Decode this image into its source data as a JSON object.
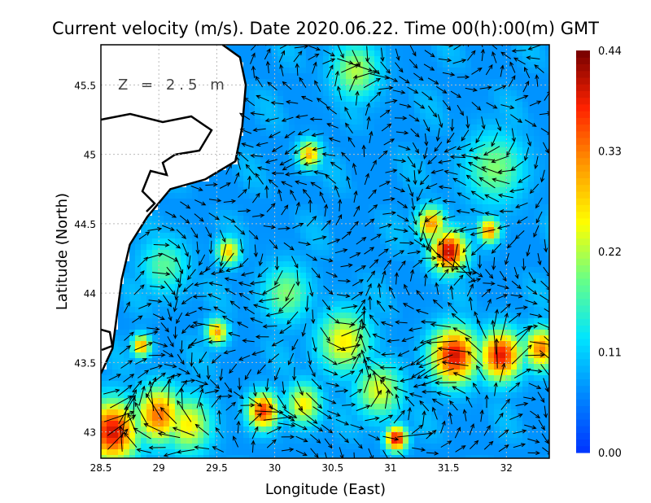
{
  "chart_data": {
    "type": "heatmap",
    "title": "Current velocity (m/s). Date 2020.06.22. Time 00(h):00(m) GMT",
    "xlabel": "Longitude (East)",
    "ylabel": "Latitude (North)",
    "annotation": "Z = 2.5 m",
    "xlim": [
      28.5,
      32.37
    ],
    "ylim": [
      42.81,
      45.79
    ],
    "xticks": [
      28.5,
      29,
      29.5,
      30,
      30.5,
      31,
      31.5,
      32
    ],
    "xtick_labels": [
      "28.5",
      "29",
      "29.5",
      "30",
      "30.5",
      "31",
      "31.5",
      "32"
    ],
    "yticks": [
      43,
      43.5,
      44,
      44.5,
      45,
      45.5
    ],
    "ytick_labels": [
      "43",
      "43.5",
      "44",
      "44.5",
      "45",
      "45.5"
    ],
    "grid": true,
    "colorbar": {
      "range": [
        0,
        0.44
      ],
      "tick_labels": [
        "0.00",
        "0.11",
        "0.22",
        "0.33",
        "0.44"
      ],
      "colors": [
        "#0033ff",
        "#0088ff",
        "#00e5ff",
        "#66ff88",
        "#ffff00",
        "#ff9900",
        "#ff2200",
        "#750000"
      ]
    },
    "background_speed": 0.07,
    "speed_maxima": [
      {
        "lon": 28.6,
        "lat": 43.0,
        "speed": 0.4,
        "r": 0.22
      },
      {
        "lon": 29.0,
        "lat": 43.12,
        "speed": 0.34,
        "r": 0.2
      },
      {
        "lon": 29.25,
        "lat": 43.05,
        "speed": 0.26,
        "r": 0.2
      },
      {
        "lon": 29.9,
        "lat": 43.15,
        "speed": 0.37,
        "r": 0.13
      },
      {
        "lon": 30.25,
        "lat": 43.2,
        "speed": 0.26,
        "r": 0.15
      },
      {
        "lon": 31.55,
        "lat": 43.55,
        "speed": 0.4,
        "r": 0.2
      },
      {
        "lon": 31.95,
        "lat": 43.55,
        "speed": 0.39,
        "r": 0.18
      },
      {
        "lon": 32.3,
        "lat": 43.6,
        "speed": 0.33,
        "r": 0.15
      },
      {
        "lon": 31.5,
        "lat": 44.3,
        "speed": 0.41,
        "r": 0.15
      },
      {
        "lon": 31.35,
        "lat": 44.5,
        "speed": 0.32,
        "r": 0.12
      },
      {
        "lon": 31.85,
        "lat": 44.45,
        "speed": 0.33,
        "r": 0.09
      },
      {
        "lon": 31.05,
        "lat": 42.95,
        "speed": 0.4,
        "r": 0.09
      },
      {
        "lon": 29.5,
        "lat": 43.72,
        "speed": 0.31,
        "r": 0.09
      },
      {
        "lon": 28.85,
        "lat": 43.62,
        "speed": 0.31,
        "r": 0.08
      },
      {
        "lon": 30.6,
        "lat": 43.65,
        "speed": 0.26,
        "r": 0.22
      },
      {
        "lon": 30.9,
        "lat": 43.3,
        "speed": 0.24,
        "r": 0.2
      },
      {
        "lon": 30.3,
        "lat": 45.0,
        "speed": 0.3,
        "r": 0.1
      },
      {
        "lon": 29.6,
        "lat": 44.3,
        "speed": 0.28,
        "r": 0.1
      },
      {
        "lon": 30.7,
        "lat": 45.6,
        "speed": 0.22,
        "r": 0.2
      },
      {
        "lon": 31.9,
        "lat": 44.9,
        "speed": 0.2,
        "r": 0.25
      },
      {
        "lon": 30.1,
        "lat": 44.0,
        "speed": 0.2,
        "r": 0.2
      },
      {
        "lon": 29.05,
        "lat": 44.2,
        "speed": 0.18,
        "r": 0.2
      }
    ],
    "coastline": [
      [
        29.55,
        45.79
      ],
      [
        29.7,
        45.7
      ],
      [
        29.75,
        45.5
      ],
      [
        29.72,
        45.2
      ],
      [
        29.66,
        44.95
      ],
      [
        29.4,
        44.82
      ],
      [
        29.1,
        44.75
      ],
      [
        28.9,
        44.55
      ],
      [
        28.75,
        44.35
      ],
      [
        28.68,
        44.1
      ],
      [
        28.64,
        43.85
      ],
      [
        28.6,
        43.6
      ],
      [
        28.5,
        43.42
      ]
    ]
  }
}
